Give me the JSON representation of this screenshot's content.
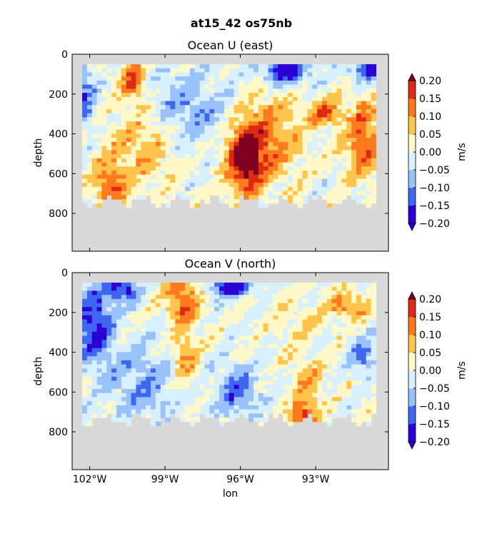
{
  "figure_title": "at15_42 os75nb",
  "chart_data": [
    {
      "type": "heatmap",
      "title": "Ocean U (east)",
      "xlabel": "",
      "ylabel": "depth",
      "colorbar_label": "m/s",
      "y_ticks": [
        0,
        200,
        400,
        600,
        800
      ],
      "x_ticks": [
        -102,
        -99,
        -96,
        -93
      ],
      "x_tick_labels": [
        "102°W",
        "99°W",
        "96°W",
        "93°W"
      ],
      "xlim": [
        -102.7,
        -90.1
      ],
      "ylim": [
        990,
        0
      ],
      "y_inverted": true,
      "color_levels": [
        -0.2,
        -0.15,
        -0.1,
        -0.05,
        0.0,
        0.05,
        0.1,
        0.15,
        0.2
      ],
      "colorbar_tick_labels": [
        "−0.20",
        "−0.15",
        "−0.10",
        "−0.05",
        "0.00",
        "0.05",
        "0.10",
        "0.15",
        "0.20"
      ],
      "colormap": [
        "#2a00d6",
        "#3f66f0",
        "#99c2fa",
        "#d9f0ff",
        "#fff9c9",
        "#ffc44c",
        "#ff7a1f",
        "#dd2a12",
        "#7f0020"
      ],
      "data_depth_range": [
        50,
        760
      ],
      "missing_color": "#d9d9d9",
      "features": [
        {
          "lon": -95.8,
          "depth": 530,
          "value": 0.22,
          "spread_lon": 0.7,
          "spread_depth": 170
        },
        {
          "lon": -95.0,
          "depth": 420,
          "value": 0.12,
          "spread_lon": 1.4,
          "spread_depth": 220
        },
        {
          "lon": -91.1,
          "depth": 430,
          "value": 0.15,
          "spread_lon": 0.7,
          "spread_depth": 200
        },
        {
          "lon": -92.6,
          "depth": 300,
          "value": 0.15,
          "spread_lon": 0.6,
          "spread_depth": 60
        },
        {
          "lon": -100.3,
          "depth": 130,
          "value": 0.15,
          "spread_lon": 0.5,
          "spread_depth": 90
        },
        {
          "lon": -101.2,
          "depth": 670,
          "value": 0.14,
          "spread_lon": 0.6,
          "spread_depth": 150
        },
        {
          "lon": -100.0,
          "depth": 470,
          "value": 0.08,
          "spread_lon": 1.2,
          "spread_depth": 200
        },
        {
          "lon": -94.2,
          "depth": 80,
          "value": -0.2,
          "spread_lon": 1.0,
          "spread_depth": 70
        },
        {
          "lon": -90.8,
          "depth": 80,
          "value": -0.18,
          "spread_lon": 0.8,
          "spread_depth": 60
        },
        {
          "lon": -102.3,
          "depth": 220,
          "value": -0.14,
          "spread_lon": 0.5,
          "spread_depth": 160
        },
        {
          "lon": -97.5,
          "depth": 300,
          "value": -0.08,
          "spread_lon": 1.6,
          "spread_depth": 170
        },
        {
          "lon": -98.8,
          "depth": 180,
          "value": -0.05,
          "spread_lon": 0.9,
          "spread_depth": 120
        }
      ]
    },
    {
      "type": "heatmap",
      "title": "Ocean V (north)",
      "xlabel": "lon",
      "ylabel": "depth",
      "colorbar_label": "m/s",
      "y_ticks": [
        0,
        200,
        400,
        600,
        800
      ],
      "x_ticks": [
        -102,
        -99,
        -96,
        -93
      ],
      "x_tick_labels": [
        "102°W",
        "99°W",
        "96°W",
        "93°W"
      ],
      "xlim": [
        -102.7,
        -90.1
      ],
      "ylim": [
        990,
        0
      ],
      "y_inverted": true,
      "color_levels": [
        -0.2,
        -0.15,
        -0.1,
        -0.05,
        0.0,
        0.05,
        0.1,
        0.15,
        0.2
      ],
      "colorbar_tick_labels": [
        "−0.20",
        "−0.15",
        "−0.10",
        "−0.05",
        "0.00",
        "0.05",
        "0.10",
        "0.15",
        "0.20"
      ],
      "colormap": [
        "#2a00d6",
        "#3f66f0",
        "#99c2fa",
        "#d9f0ff",
        "#fff9c9",
        "#ffc44c",
        "#ff7a1f",
        "#dd2a12",
        "#7f0020"
      ],
      "data_depth_range": [
        50,
        760
      ],
      "missing_color": "#d9d9d9",
      "features": [
        {
          "lon": -101.8,
          "depth": 260,
          "value": -0.18,
          "spread_lon": 0.7,
          "spread_depth": 200
        },
        {
          "lon": -100.7,
          "depth": 80,
          "value": -0.18,
          "spread_lon": 0.6,
          "spread_depth": 60
        },
        {
          "lon": -98.3,
          "depth": 130,
          "value": 0.16,
          "spread_lon": 0.6,
          "spread_depth": 120
        },
        {
          "lon": -98.2,
          "depth": 420,
          "value": 0.12,
          "spread_lon": 0.5,
          "spread_depth": 150
        },
        {
          "lon": -96.3,
          "depth": 70,
          "value": -0.2,
          "spread_lon": 0.9,
          "spread_depth": 50
        },
        {
          "lon": -96.1,
          "depth": 600,
          "value": -0.13,
          "spread_lon": 0.8,
          "spread_depth": 130
        },
        {
          "lon": -93.5,
          "depth": 720,
          "value": 0.16,
          "spread_lon": 0.5,
          "spread_depth": 70
        },
        {
          "lon": -93.3,
          "depth": 560,
          "value": 0.08,
          "spread_lon": 0.7,
          "spread_depth": 150
        },
        {
          "lon": -91.7,
          "depth": 170,
          "value": 0.12,
          "spread_lon": 0.8,
          "spread_depth": 70
        },
        {
          "lon": -91.1,
          "depth": 420,
          "value": -0.13,
          "spread_lon": 0.4,
          "spread_depth": 90
        },
        {
          "lon": -99.8,
          "depth": 560,
          "value": -0.09,
          "spread_lon": 1.4,
          "spread_depth": 200
        },
        {
          "lon": -93.8,
          "depth": 250,
          "value": 0.04,
          "spread_lon": 1.0,
          "spread_depth": 130
        }
      ]
    }
  ]
}
